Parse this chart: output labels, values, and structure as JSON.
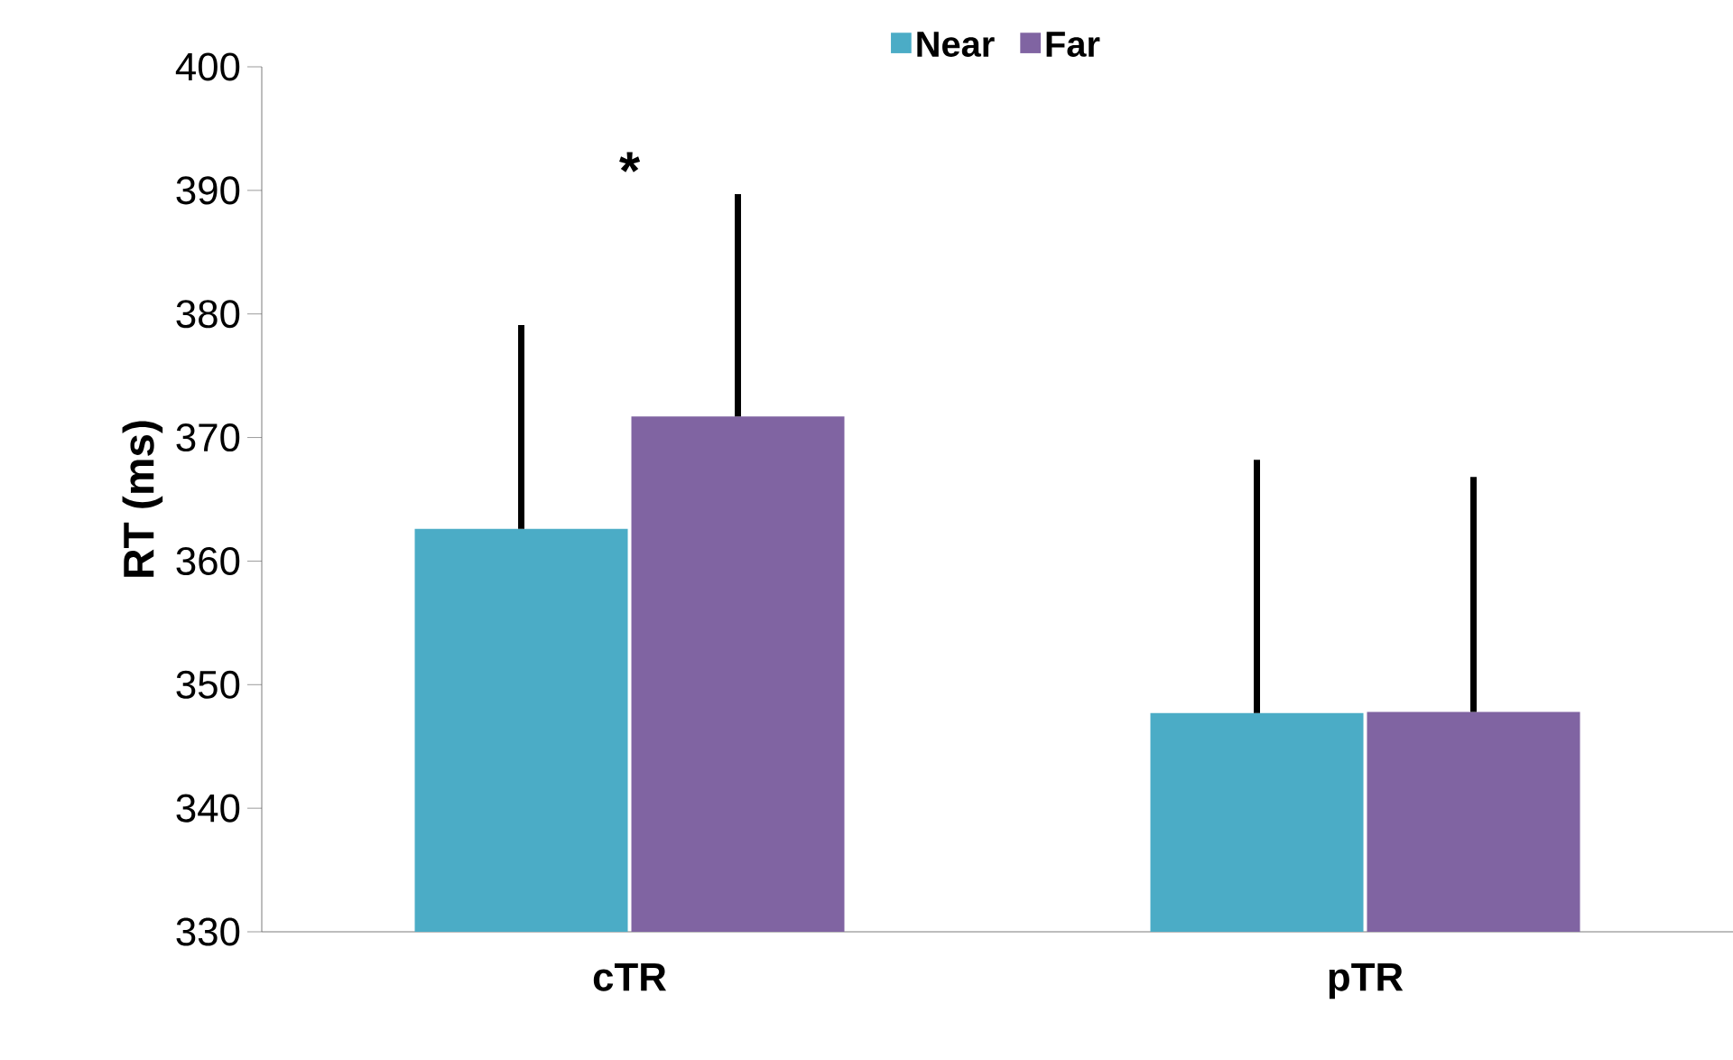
{
  "chart_data": {
    "type": "bar",
    "ylabel": "RT (ms)",
    "categories": [
      "cTR",
      "pTR"
    ],
    "series": [
      {
        "name": "Near",
        "color": "#4bacc6",
        "values": [
          362.6,
          347.7
        ],
        "errors": [
          [
            362.6,
            379.1
          ],
          [
            347.7,
            368.2
          ]
        ]
      },
      {
        "name": "Far",
        "color": "#8064a2",
        "values": [
          371.7,
          347.8
        ],
        "errors": [
          [
            371.7,
            389.7
          ],
          [
            347.8,
            366.8
          ]
        ]
      }
    ],
    "ylim": [
      330,
      400
    ],
    "yticks": [
      330,
      340,
      350,
      360,
      370,
      380,
      390,
      400
    ],
    "grid": false,
    "legend": "top",
    "annotations": [
      "*"
    ]
  }
}
